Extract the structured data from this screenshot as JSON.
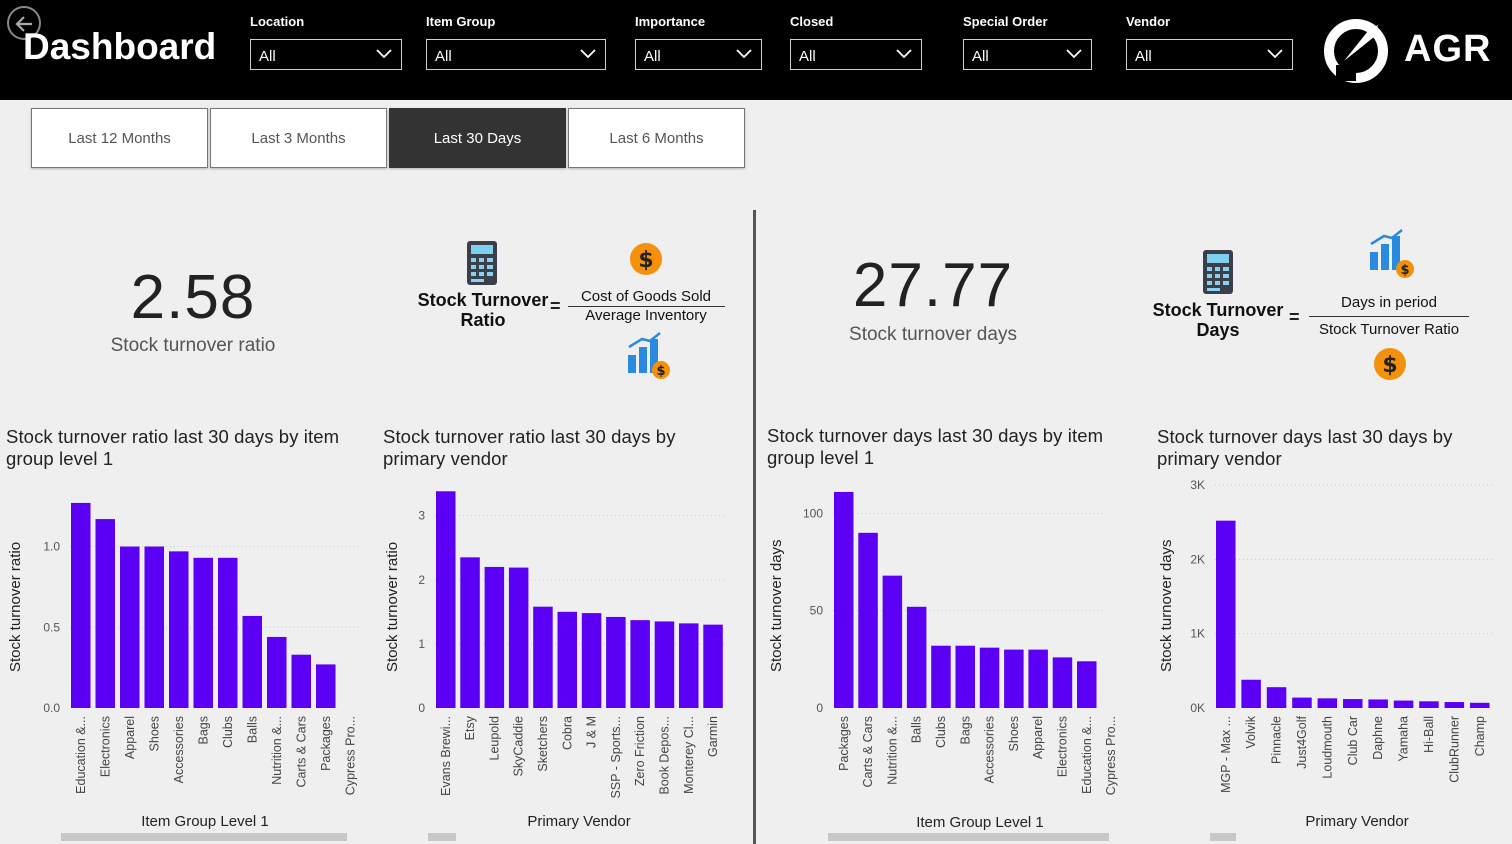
{
  "header": {
    "title": "Dashboard",
    "brand": "AGR",
    "filters": [
      {
        "label": "Location",
        "value": "All"
      },
      {
        "label": "Item Group",
        "value": "All"
      },
      {
        "label": "Importance",
        "value": "All"
      },
      {
        "label": "Closed",
        "value": "All"
      },
      {
        "label": "Special Order",
        "value": "All"
      },
      {
        "label": "Vendor",
        "value": "All"
      }
    ]
  },
  "periods": [
    {
      "label": "Last 12 Months",
      "active": false
    },
    {
      "label": "Last 3 Months",
      "active": false
    },
    {
      "label": "Last 30 Days",
      "active": true
    },
    {
      "label": "Last 6 Months",
      "active": false
    }
  ],
  "kpis": {
    "ratio": {
      "value": "2.58",
      "label": "Stock turnover ratio"
    },
    "days": {
      "value": "27.77",
      "label": "Stock turnover days"
    }
  },
  "formulas": {
    "ratio": {
      "name_line1": "Stock Turnover",
      "name_line2": "Ratio",
      "numerator": "Cost of Goods Sold",
      "denominator": "Average Inventory"
    },
    "days": {
      "name_line1": "Stock Turnover",
      "name_line2": "Days",
      "numerator": "Days in period",
      "denominator": "Stock Turnover Ratio"
    }
  },
  "colors": {
    "bar": "#5b00f5",
    "header": "#000000",
    "background": "#efefef"
  },
  "chart_data": [
    {
      "type": "bar",
      "title_line1": "Stock turnover ratio last 30 days by item",
      "title_line2": "group level 1",
      "xlabel": "Item Group Level 1",
      "ylabel": "Stock turnover ratio",
      "ylim": [
        0,
        1.35
      ],
      "ticks": [
        {
          "v": 0,
          "t": "0.0"
        },
        {
          "v": 0.5,
          "t": "0.5"
        },
        {
          "v": 1.0,
          "t": "1.0"
        }
      ],
      "categories": [
        "Education &...",
        "Electronics",
        "Apparel",
        "Shoes",
        "Accessories",
        "Bags",
        "Clubs",
        "Balls",
        "Nutrition &...",
        "Carts & Cars",
        "Packages",
        "Cypress Pro..."
      ],
      "values": [
        1.27,
        1.17,
        1.0,
        1.0,
        0.97,
        0.93,
        0.93,
        0.57,
        0.44,
        0.33,
        0.27,
        0
      ]
    },
    {
      "type": "bar",
      "title_line1": "Stock turnover ratio last 30 days by",
      "title_line2": "primary vendor",
      "xlabel": "Primary Vendor",
      "ylabel": "Stock turnover ratio",
      "ylim": [
        0,
        3.4
      ],
      "ticks": [
        {
          "v": 0,
          "t": "0"
        },
        {
          "v": 1,
          "t": "1"
        },
        {
          "v": 2,
          "t": "2"
        },
        {
          "v": 3,
          "t": "3"
        }
      ],
      "categories": [
        "Evans Brewi...",
        "Etsy",
        "Leupold",
        "SkyCaddie",
        "Sketchers",
        "Cobra",
        "J & M",
        "SSP - Sports...",
        "Zero Friction",
        "Book Depos...",
        "Monterey Cl...",
        "Garmin"
      ],
      "values": [
        3.38,
        2.35,
        2.2,
        2.19,
        1.58,
        1.5,
        1.48,
        1.42,
        1.37,
        1.35,
        1.32,
        1.3
      ]
    },
    {
      "type": "bar",
      "title_line1": "Stock turnover days last 30 days by item",
      "title_line2": "group level 1",
      "xlabel": "Item Group Level 1",
      "ylabel": "Stock turnover days",
      "ylim": [
        0,
        112
      ],
      "ticks": [
        {
          "v": 0,
          "t": "0"
        },
        {
          "v": 50,
          "t": "50"
        },
        {
          "v": 100,
          "t": "100"
        }
      ],
      "categories": [
        "Packages",
        "Carts & Cars",
        "Nutrition &...",
        "Balls",
        "Clubs",
        "Bags",
        "Accessories",
        "Shoes",
        "Apparel",
        "Electronics",
        "Education &...",
        "Cypress Pro..."
      ],
      "values": [
        111,
        90,
        68,
        52,
        32,
        32,
        31,
        30,
        30,
        26,
        24,
        0
      ]
    },
    {
      "type": "bar",
      "title_line1": "Stock turnover days last 30 days by",
      "title_line2": "primary vendor",
      "xlabel": "Primary Vendor",
      "ylabel": "Stock turnover days",
      "ylim": [
        0,
        3000
      ],
      "ticks": [
        {
          "v": 0,
          "t": "0K"
        },
        {
          "v": 1000,
          "t": "1K"
        },
        {
          "v": 2000,
          "t": "2K"
        },
        {
          "v": 3000,
          "t": "3K"
        }
      ],
      "categories": [
        "MGP - Max ...",
        "Volvik",
        "Pinnacle",
        "Just4Golf",
        "Loudmouth",
        "Club Car",
        "Daphne",
        "Yamaha",
        "Hi-Ball",
        "ClubRunner",
        "Champ"
      ],
      "values": [
        2520,
        380,
        280,
        140,
        130,
        120,
        115,
        100,
        90,
        80,
        70
      ]
    }
  ]
}
